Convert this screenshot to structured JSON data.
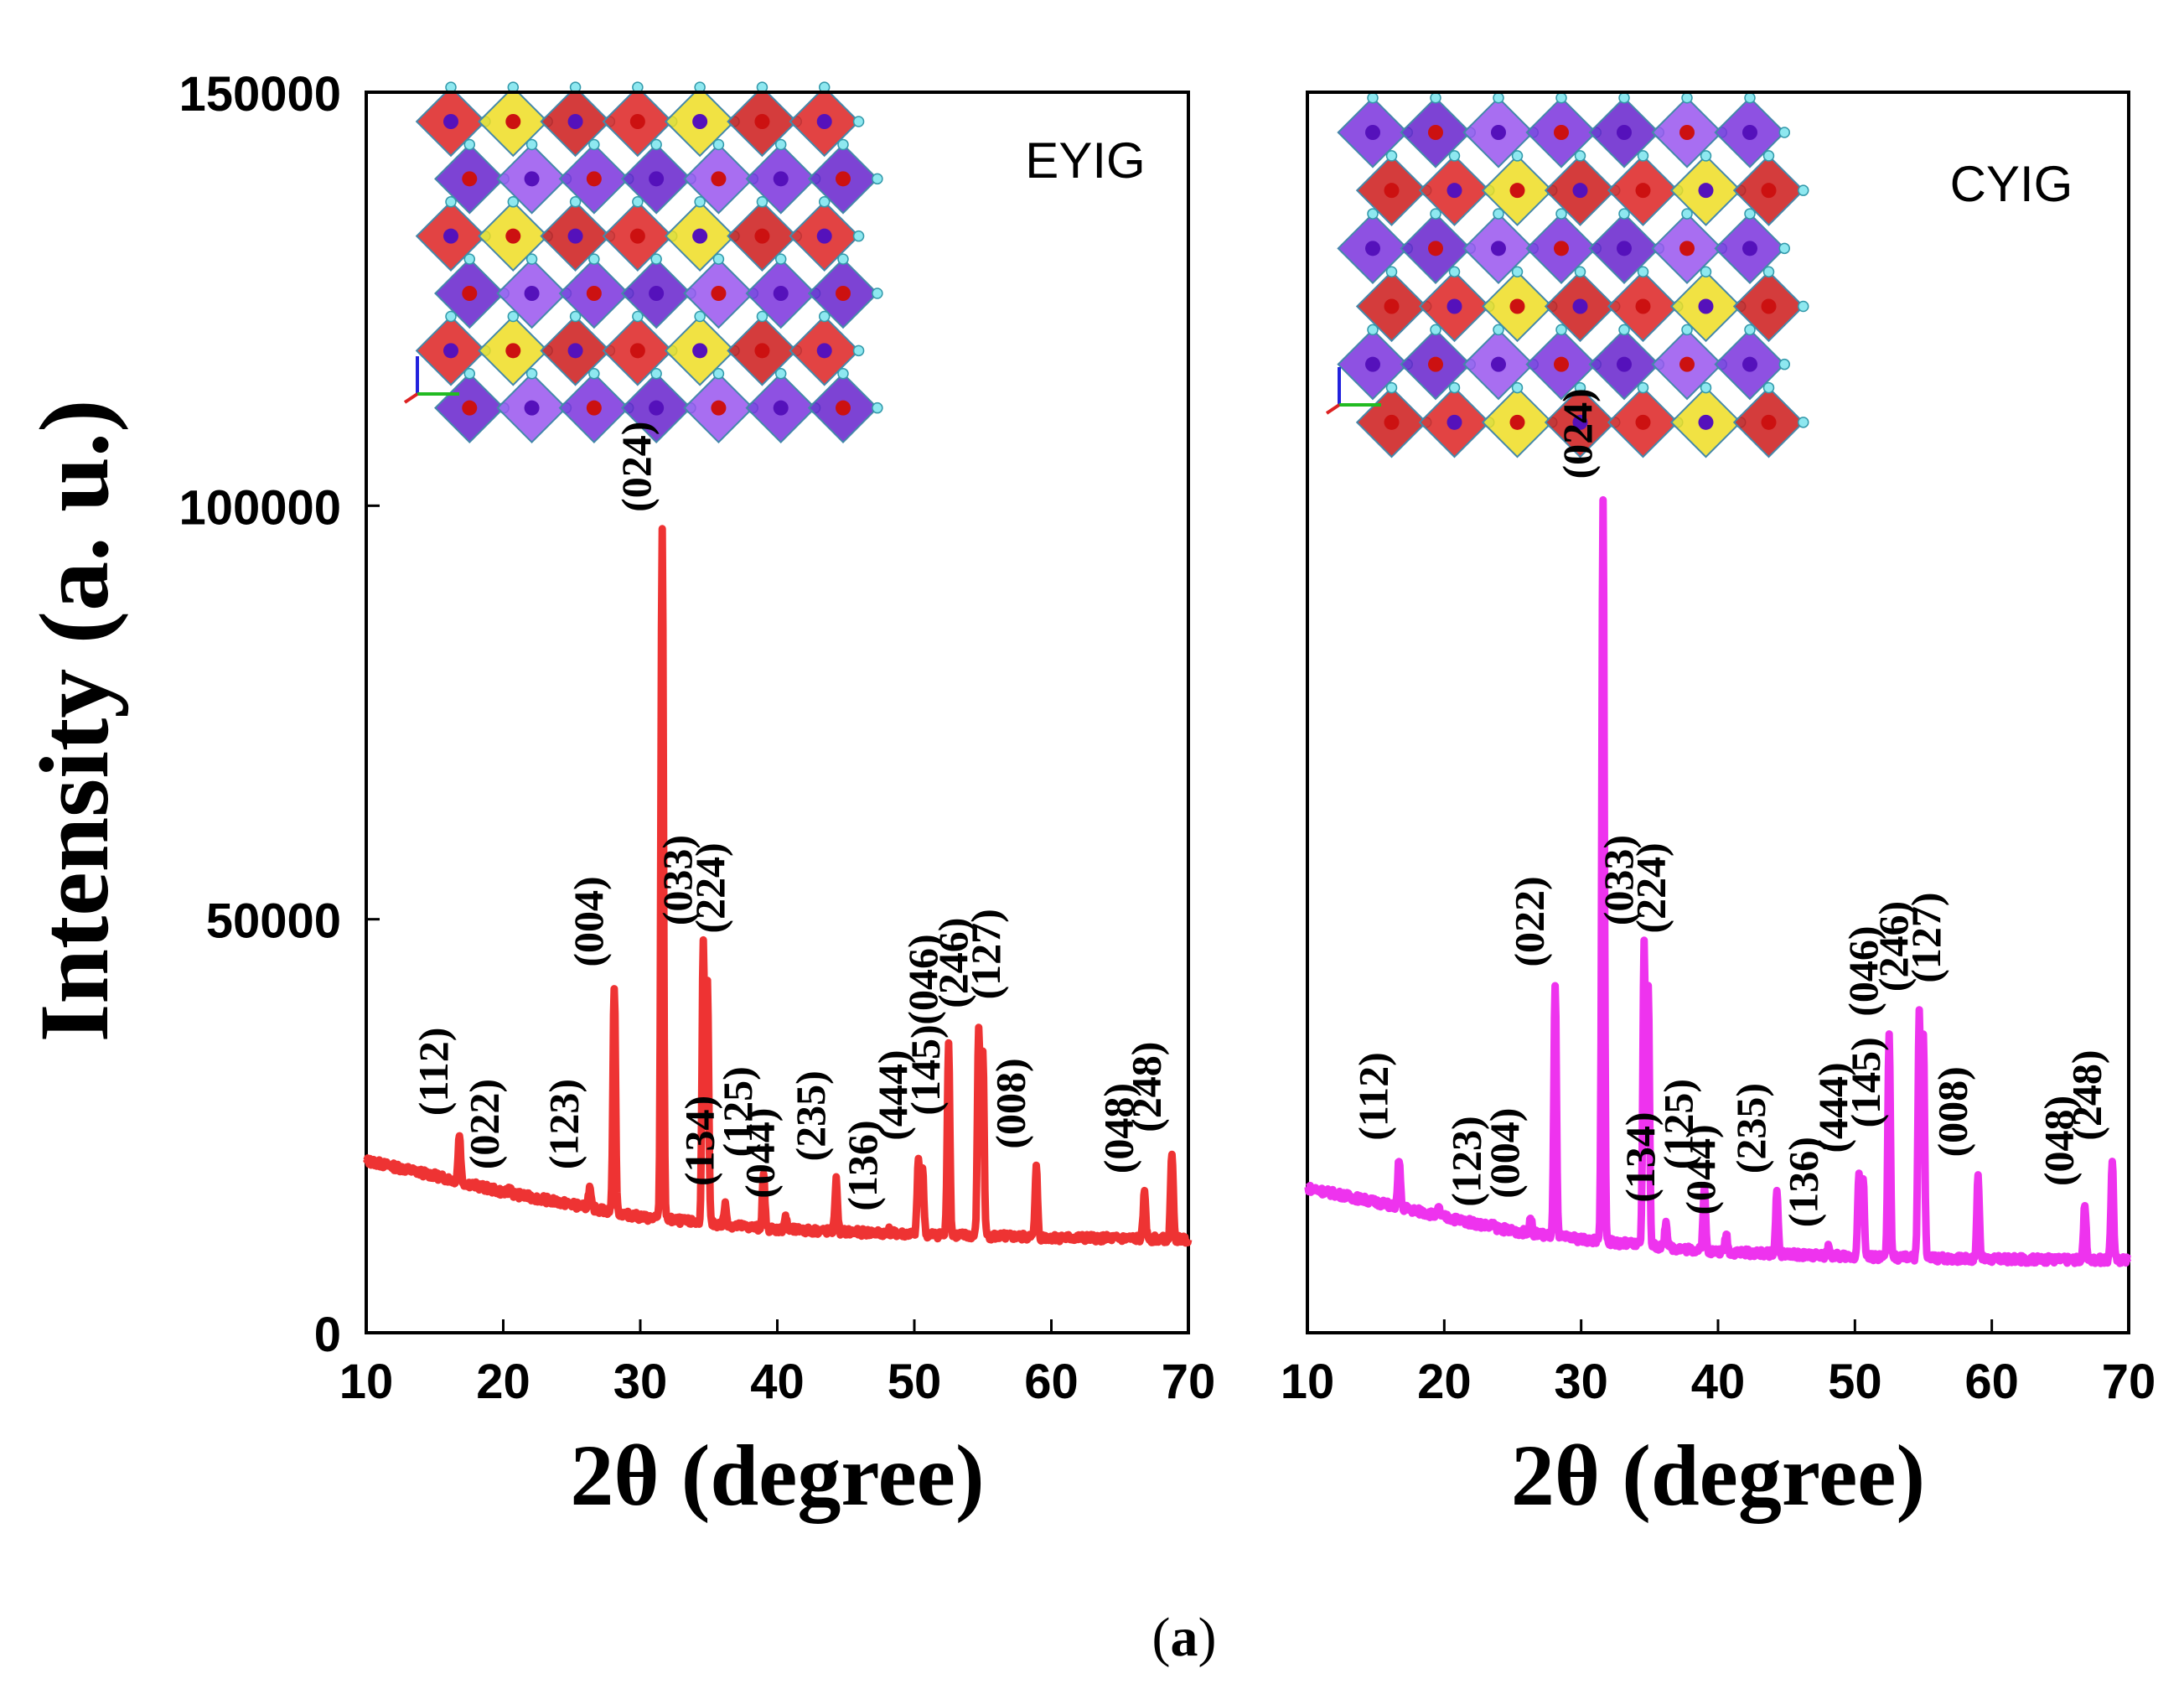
{
  "figure": {
    "caption_open": "(",
    "caption_letter": "a",
    "caption_close": ")"
  },
  "chart_data": [
    {
      "type": "line",
      "title": "EYIG",
      "xlabel": "2θ  (degree)",
      "ylabel": "Intensity (a. u.)",
      "xlim": [
        10,
        70
      ],
      "ylim": [
        0,
        150000
      ],
      "xticks": [
        10,
        20,
        30,
        40,
        50,
        60,
        70
      ],
      "yticks": [
        0,
        50000,
        100000,
        150000
      ],
      "color": "#ee3333",
      "inset": "crystal-structure",
      "series": [
        {
          "name": "EYIG",
          "baseline": [
            [
              10,
              20800
            ],
            [
              15,
              19000
            ],
            [
              20,
              17000
            ],
            [
              25,
              15500
            ],
            [
              30,
              14000
            ],
            [
              35,
              13200
            ],
            [
              40,
              12500
            ],
            [
              50,
              11900
            ],
            [
              60,
              11500
            ],
            [
              70,
              11300
            ]
          ],
          "peaks": [
            {
              "two_theta": 16.8,
              "intensity": 24000,
              "hkl": "(112)"
            },
            {
              "two_theta": 20.5,
              "intensity": 17500,
              "hkl": "(022)"
            },
            {
              "two_theta": 26.3,
              "intensity": 17500,
              "hkl": "(123)"
            },
            {
              "two_theta": 28.1,
              "intensity": 42000,
              "hkl": "(004)"
            },
            {
              "two_theta": 31.6,
              "intensity": 97000,
              "hkl": "(024)"
            },
            {
              "two_theta": 34.6,
              "intensity": 47000,
              "hkl": "(033)"
            },
            {
              "two_theta": 34.9,
              "intensity": 42000,
              "hkl": "(224)"
            },
            {
              "two_theta": 36.2,
              "intensity": 15500,
              "hkl": "(134)"
            },
            {
              "two_theta": 39.0,
              "intensity": 19000,
              "hkl": "(125)"
            },
            {
              "two_theta": 40.6,
              "intensity": 14000,
              "hkl": "(044)"
            },
            {
              "two_theta": 44.3,
              "intensity": 18500,
              "hkl": "(235)"
            },
            {
              "two_theta": 48.1,
              "intensity": 12500,
              "hkl": "(136)"
            },
            {
              "two_theta": 50.3,
              "intensity": 21000,
              "hkl": "(444)"
            },
            {
              "two_theta": 50.6,
              "intensity": 20000,
              "hkl": "(145)"
            },
            {
              "two_theta": 52.5,
              "intensity": 35000,
              "hkl": "(046)"
            },
            {
              "two_theta": 54.7,
              "intensity": 37000,
              "hkl": "(246)"
            },
            {
              "two_theta": 55.0,
              "intensity": 34000,
              "hkl": "(127)"
            },
            {
              "two_theta": 58.9,
              "intensity": 20000,
              "hkl": "(008)"
            },
            {
              "two_theta": 66.8,
              "intensity": 17000,
              "hkl": "(048)"
            },
            {
              "two_theta": 68.8,
              "intensity": 22000,
              "hkl": "(248)"
            }
          ]
        }
      ]
    },
    {
      "type": "line",
      "title": "CYIG",
      "xlabel": "2θ  (degree)",
      "ylabel": "",
      "xlim": [
        10,
        70
      ],
      "ylim": [
        0,
        150000
      ],
      "xticks": [
        10,
        20,
        30,
        40,
        50,
        60,
        70
      ],
      "yticks": [],
      "color": "#ee33ee",
      "inset": "crystal-structure",
      "series": [
        {
          "name": "CYIG",
          "baseline": [
            [
              10,
              17500
            ],
            [
              15,
              15800
            ],
            [
              20,
              14000
            ],
            [
              25,
              12300
            ],
            [
              30,
              11300
            ],
            [
              35,
              10500
            ],
            [
              40,
              9800
            ],
            [
              50,
              9200
            ],
            [
              60,
              8900
            ],
            [
              70,
              8800
            ]
          ],
          "peaks": [
            {
              "two_theta": 16.7,
              "intensity": 21000,
              "hkl": "(112)"
            },
            {
              "two_theta": 19.6,
              "intensity": 15000,
              "hkl": ""
            },
            {
              "two_theta": 23.5,
              "intensity": 13000,
              "hkl": "(123)"
            },
            {
              "two_theta": 26.3,
              "intensity": 14000,
              "hkl": "(004)"
            },
            {
              "two_theta": 28.1,
              "intensity": 42000,
              "hkl": "(022)"
            },
            {
              "two_theta": 31.6,
              "intensity": 101000,
              "hkl": "(024)"
            },
            {
              "two_theta": 34.6,
              "intensity": 47000,
              "hkl": "(033)"
            },
            {
              "two_theta": 34.9,
              "intensity": 42000,
              "hkl": "(224)"
            },
            {
              "two_theta": 36.2,
              "intensity": 13500,
              "hkl": "(134)"
            },
            {
              "two_theta": 39.0,
              "intensity": 17500,
              "hkl": "(125)"
            },
            {
              "two_theta": 40.6,
              "intensity": 12000,
              "hkl": "(044)"
            },
            {
              "two_theta": 44.3,
              "intensity": 17000,
              "hkl": "(235)"
            },
            {
              "two_theta": 48.1,
              "intensity": 10500,
              "hkl": "(136)"
            },
            {
              "two_theta": 50.3,
              "intensity": 19500,
              "hkl": "(444)"
            },
            {
              "two_theta": 50.6,
              "intensity": 18500,
              "hkl": "(145)"
            },
            {
              "two_theta": 52.5,
              "intensity": 36000,
              "hkl": "(046)"
            },
            {
              "two_theta": 54.7,
              "intensity": 39000,
              "hkl": "(246)"
            },
            {
              "two_theta": 55.0,
              "intensity": 36000,
              "hkl": "(127)"
            },
            {
              "two_theta": 59.0,
              "intensity": 19000,
              "hkl": "(008)"
            },
            {
              "two_theta": 66.8,
              "intensity": 15500,
              "hkl": "(048)"
            },
            {
              "two_theta": 68.8,
              "intensity": 21000,
              "hkl": "(248)"
            }
          ]
        }
      ]
    }
  ]
}
